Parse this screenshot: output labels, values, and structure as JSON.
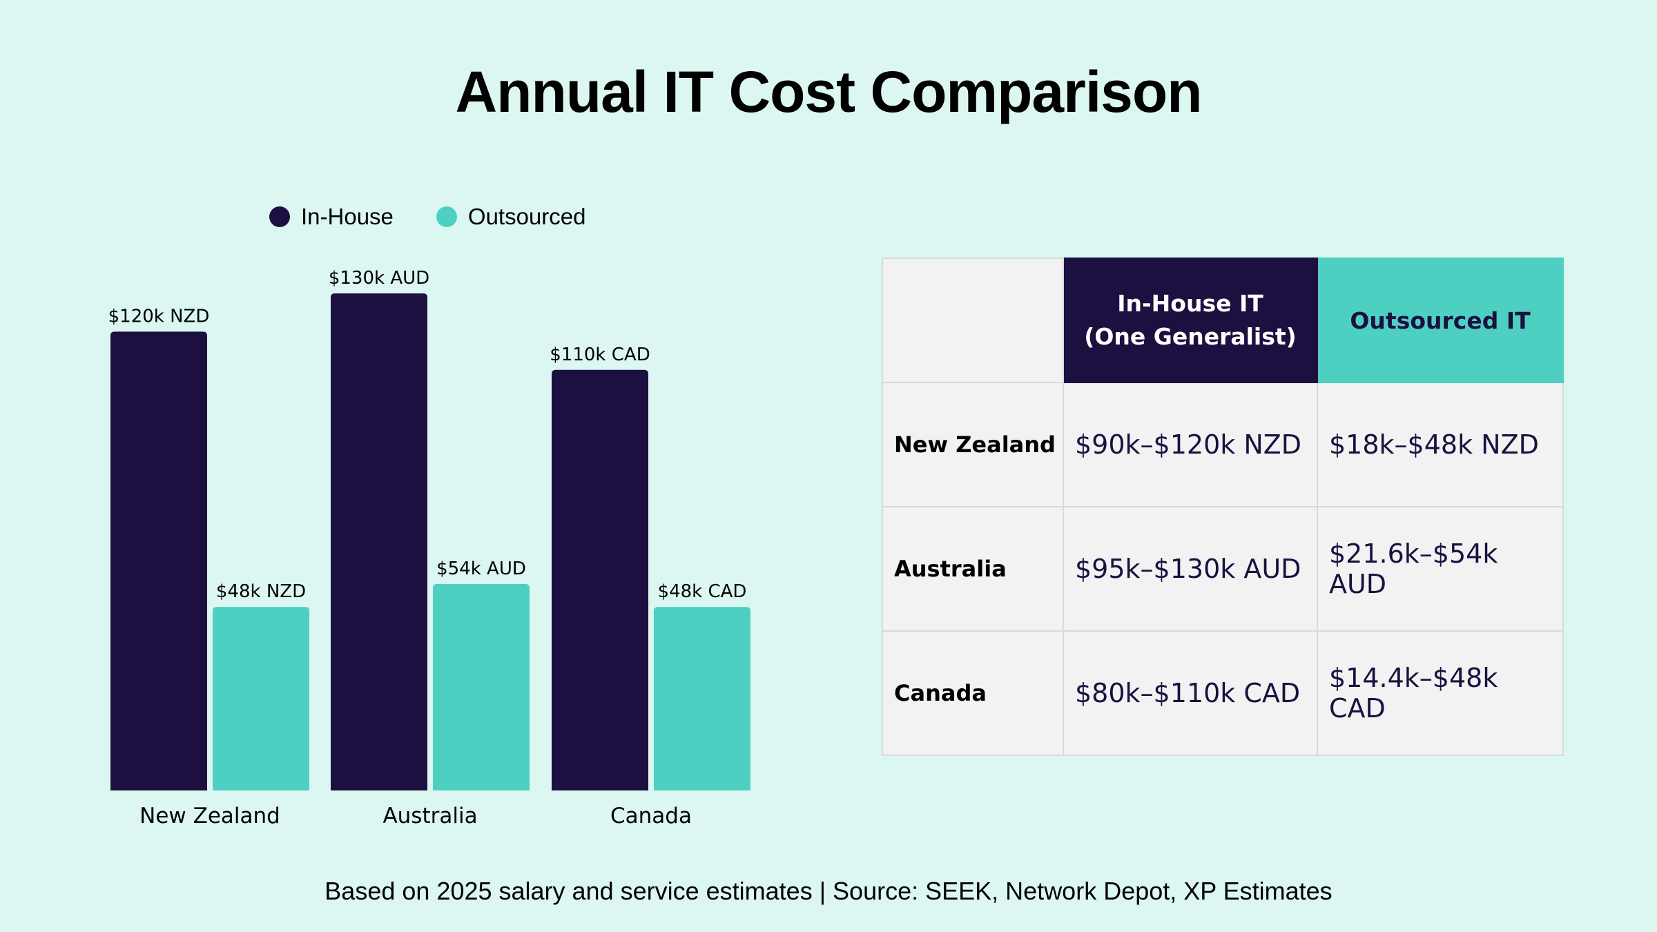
{
  "title": "Annual IT Cost Comparison",
  "colors": {
    "in_house": "#1b1040",
    "outsourced": "#4dd0c2",
    "background": "#dcf7f1"
  },
  "legend": {
    "in_house": "In-House",
    "outsourced": "Outsourced"
  },
  "chart_data": {
    "type": "bar",
    "categories": [
      "New Zealand",
      "Australia",
      "Canada"
    ],
    "series": [
      {
        "name": "In-House",
        "values": [
          120,
          130,
          110
        ],
        "labels": [
          "$120k NZD",
          "$130k AUD",
          "$110k CAD"
        ]
      },
      {
        "name": "Outsourced",
        "values": [
          48,
          54,
          48
        ],
        "labels": [
          "$48k NZD",
          "$54k AUD",
          "$48k CAD"
        ]
      }
    ],
    "title": "Annual IT Cost Comparison",
    "xlabel": "",
    "ylabel": "",
    "ylim": [
      0,
      130
    ],
    "grid": false,
    "legend_position": "top-left"
  },
  "table": {
    "headers": [
      "",
      "In-House IT\n(One Generalist)",
      "Outsourced IT"
    ],
    "header_inhouse_line1": "In-House IT",
    "header_inhouse_line2": "(One Generalist)",
    "header_outsourced": "Outsourced IT",
    "rows": [
      {
        "country": "New Zealand",
        "in_house": "$90k–$120k NZD",
        "outsourced": "$18k–$48k NZD"
      },
      {
        "country": "Australia",
        "in_house": "$95k–$130k AUD",
        "outsourced": "$21.6k–$54k AUD"
      },
      {
        "country": "Canada",
        "in_house": "$80k–$110k CAD",
        "outsourced": "$14.4k–$48k CAD"
      }
    ]
  },
  "footer": "Based on 2025 salary and service estimates | Source: SEEK, Network Depot, XP Estimates"
}
